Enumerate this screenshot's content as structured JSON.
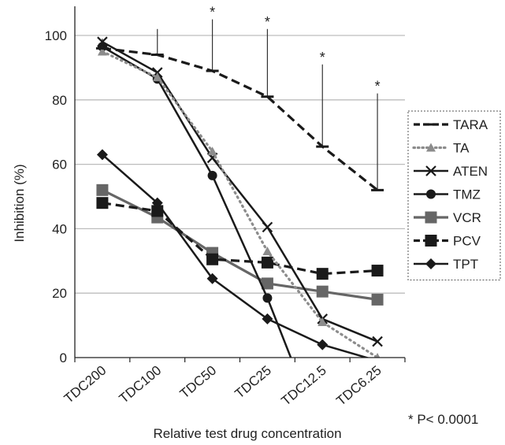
{
  "chart_data": {
    "type": "line",
    "categories": [
      "TDC200",
      "TDC100",
      "TDC50",
      "TDC25",
      "TDC12.5",
      "TDC6.25"
    ],
    "xlabel": "Relative test drug concentration",
    "ylabel": "Inhibition (%)",
    "ylim": [
      0,
      100
    ],
    "yticks": [
      0,
      20,
      40,
      60,
      80,
      100
    ],
    "grid": true,
    "legend_position": "right",
    "series": [
      {
        "name": "TARA",
        "values": [
          96,
          94,
          89,
          81,
          65.5,
          52
        ],
        "color": "#1a1a1a",
        "style": "dashed-thick",
        "marker": "dash",
        "error_upper": [
          99,
          102,
          105,
          102,
          91,
          82
        ]
      },
      {
        "name": "TA",
        "values": [
          95,
          87,
          64,
          33,
          11,
          0
        ],
        "color": "#8c8c8c",
        "style": "dotted",
        "marker": "triangle"
      },
      {
        "name": "ATEN",
        "values": [
          98,
          88.5,
          62,
          40.5,
          12,
          5
        ],
        "color": "#1a1a1a",
        "style": "solid",
        "marker": "x"
      },
      {
        "name": "TMZ",
        "values": [
          96.5,
          86.5,
          56.5,
          18.5,
          -25,
          null
        ],
        "color": "#1a1a1a",
        "style": "solid",
        "marker": "circle"
      },
      {
        "name": "VCR",
        "values": [
          52,
          43.5,
          32.5,
          23,
          20.5,
          18
        ],
        "color": "#666666",
        "style": "solid-thick",
        "marker": "square"
      },
      {
        "name": "PCV",
        "values": [
          48,
          45.5,
          30.5,
          29.5,
          26,
          27
        ],
        "color": "#1a1a1a",
        "style": "dashed-thick",
        "marker": "square"
      },
      {
        "name": "TPT",
        "values": [
          63,
          48,
          24.5,
          12,
          4,
          -1
        ],
        "color": "#1a1a1a",
        "style": "solid",
        "marker": "diamond"
      }
    ],
    "significance_marker": "*",
    "significant_categories": [
      "TDC50",
      "TDC25",
      "TDC12.5",
      "TDC6.25"
    ],
    "note": "* P< 0.0001"
  }
}
